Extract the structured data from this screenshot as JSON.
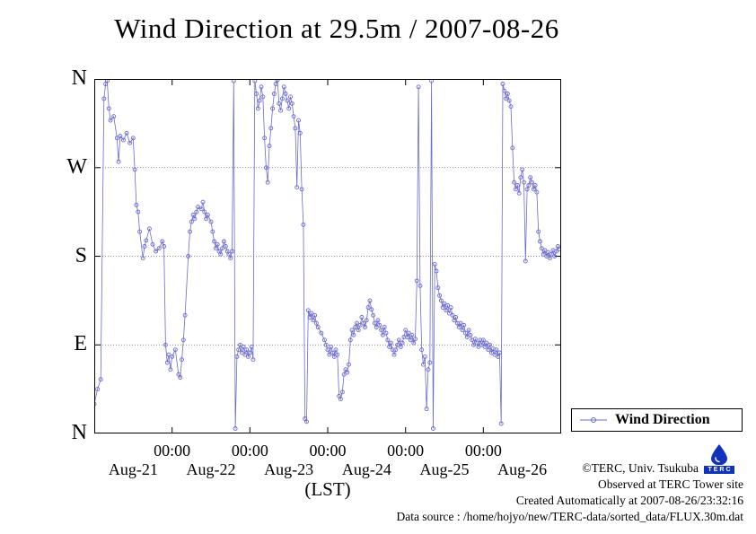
{
  "colors": {
    "series": "#6b6bd0",
    "axis": "#000000",
    "grid": "#666666",
    "logo_blue": "#1133bb"
  },
  "legend": {
    "label": "Wind Direction"
  },
  "footer": {
    "copyright": "©TERC, Univ. Tsukuba",
    "observed": "Observed at TERC Tower site",
    "created": "Created Automatically at 2007-08-26/23:32:16",
    "datasource": "Data source : /home/hojyo/new/TERC-data/sorted_data/FLUX.30m.dat",
    "logo_text": "TERC"
  },
  "chart_data": {
    "type": "line",
    "title": "Wind Direction at 29.5m / 2007-08-26",
    "xlabel": "(LST)",
    "ylabel": "",
    "x_unit": "hours since 2007-08-21 00:00 LST (points every 30 min)",
    "y_unit": "wind direction in degrees (0=N, 90=E, 180=S, 270=W, 360=N)",
    "xlim": [
      0,
      144
    ],
    "ylim": [
      0,
      360
    ],
    "grid": true,
    "legend_position": "outside-right-bottom",
    "y_ticks": [
      {
        "value": 360,
        "label": "N"
      },
      {
        "value": 270,
        "label": "W"
      },
      {
        "value": 180,
        "label": "S"
      },
      {
        "value": 90,
        "label": "E"
      },
      {
        "value": 0,
        "label": "N"
      }
    ],
    "x_ticks": [
      {
        "value": 24,
        "label": "00:00"
      },
      {
        "value": 48,
        "label": "00:00"
      },
      {
        "value": 72,
        "label": "00:00"
      },
      {
        "value": 96,
        "label": "00:00"
      },
      {
        "value": 120,
        "label": "00:00"
      }
    ],
    "x_day_labels": [
      {
        "value": 12,
        "label": "Aug-21"
      },
      {
        "value": 36,
        "label": "Aug-22"
      },
      {
        "value": 60,
        "label": "Aug-23"
      },
      {
        "value": 84,
        "label": "Aug-24"
      },
      {
        "value": 108,
        "label": "Aug-25"
      },
      {
        "value": 132,
        "label": "Aug-26"
      }
    ],
    "series": [
      {
        "name": "Wind Direction",
        "color": "#6b6bd0",
        "marker": "open-circle",
        "points": [
          [
            0,
            30
          ],
          [
            1,
            45
          ],
          [
            2,
            55
          ],
          [
            3,
            340
          ],
          [
            3.5,
            355
          ],
          [
            4,
            358
          ],
          [
            4.5,
            330
          ],
          [
            5,
            318
          ],
          [
            6,
            322
          ],
          [
            7,
            300
          ],
          [
            7.5,
            276
          ],
          [
            8,
            302
          ],
          [
            9,
            298
          ],
          [
            10,
            305
          ],
          [
            11,
            295
          ],
          [
            12,
            300
          ],
          [
            12.5,
            268
          ],
          [
            13,
            232
          ],
          [
            13.5,
            225
          ],
          [
            14,
            205
          ],
          [
            15,
            178
          ],
          [
            15.5,
            190
          ],
          [
            16,
            196
          ],
          [
            17,
            208
          ],
          [
            18,
            192
          ],
          [
            19,
            185
          ],
          [
            20,
            188
          ],
          [
            21,
            195
          ],
          [
            21.5,
            190
          ],
          [
            22,
            90
          ],
          [
            22.5,
            72
          ],
          [
            23,
            80
          ],
          [
            23.5,
            65
          ],
          [
            24,
            78
          ],
          [
            25,
            85
          ],
          [
            26,
            60
          ],
          [
            26.5,
            57
          ],
          [
            27,
            75
          ],
          [
            27.5,
            95
          ],
          [
            28,
            120
          ],
          [
            29,
            180
          ],
          [
            29.5,
            205
          ],
          [
            30,
            215
          ],
          [
            30.5,
            222
          ],
          [
            31,
            218
          ],
          [
            31.5,
            225
          ],
          [
            32,
            230
          ],
          [
            33,
            228
          ],
          [
            33.5,
            235
          ],
          [
            34,
            225
          ],
          [
            34.5,
            218
          ],
          [
            35,
            222
          ],
          [
            36,
            215
          ],
          [
            36.5,
            205
          ],
          [
            37,
            195
          ],
          [
            37.5,
            188
          ],
          [
            38,
            192
          ],
          [
            38.5,
            185
          ],
          [
            39,
            182
          ],
          [
            39.5,
            188
          ],
          [
            40,
            195
          ],
          [
            40.5,
            190
          ],
          [
            41,
            185
          ],
          [
            41.5,
            182
          ],
          [
            42,
            178
          ],
          [
            42.5,
            185
          ],
          [
            43,
            358
          ],
          [
            43.5,
            5
          ],
          [
            44,
            78
          ],
          [
            44.5,
            85
          ],
          [
            45,
            90
          ],
          [
            45.5,
            82
          ],
          [
            46,
            88
          ],
          [
            46.5,
            80
          ],
          [
            47,
            85
          ],
          [
            47.5,
            78
          ],
          [
            48,
            82
          ],
          [
            48.5,
            88
          ],
          [
            49,
            75
          ],
          [
            49.5,
            358
          ],
          [
            50,
            345
          ],
          [
            50.5,
            330
          ],
          [
            51,
            338
          ],
          [
            51.5,
            352
          ],
          [
            52,
            342
          ],
          [
            52.5,
            300
          ],
          [
            53,
            270
          ],
          [
            53.5,
            255
          ],
          [
            54,
            292
          ],
          [
            54.5,
            310
          ],
          [
            55,
            330
          ],
          [
            55.5,
            345
          ],
          [
            56,
            355
          ],
          [
            56.5,
            359
          ],
          [
            57,
            335
          ],
          [
            57.5,
            328
          ],
          [
            58,
            340
          ],
          [
            58.5,
            352
          ],
          [
            59,
            345
          ],
          [
            59.5,
            338
          ],
          [
            60,
            330
          ],
          [
            60.5,
            342
          ],
          [
            61,
            335
          ],
          [
            61.5,
            322
          ],
          [
            62,
            310
          ],
          [
            62.5,
            250
          ],
          [
            63,
            318
          ],
          [
            63.5,
            305
          ],
          [
            64,
            248
          ],
          [
            64.5,
            212
          ],
          [
            65,
            15
          ],
          [
            65.5,
            12
          ],
          [
            66,
            125
          ],
          [
            66.5,
            118
          ],
          [
            67,
            122
          ],
          [
            67.5,
            115
          ],
          [
            68,
            120
          ],
          [
            68.5,
            112
          ],
          [
            69,
            108
          ],
          [
            70,
            102
          ],
          [
            71,
            95
          ],
          [
            71.5,
            90
          ],
          [
            72,
            85
          ],
          [
            72.5,
            80
          ],
          [
            73,
            88
          ],
          [
            73.5,
            82
          ],
          [
            74,
            78
          ],
          [
            74.5,
            85
          ],
          [
            75,
            80
          ],
          [
            75.5,
            38
          ],
          [
            76,
            35
          ],
          [
            76.5,
            42
          ],
          [
            77,
            60
          ],
          [
            77.5,
            65
          ],
          [
            78,
            62
          ],
          [
            78.5,
            70
          ],
          [
            79,
            95
          ],
          [
            79.5,
            105
          ],
          [
            80,
            100
          ],
          [
            80.5,
            108
          ],
          [
            81,
            112
          ],
          [
            81.5,
            105
          ],
          [
            82,
            110
          ],
          [
            82.5,
            118
          ],
          [
            83,
            112
          ],
          [
            83.5,
            108
          ],
          [
            84,
            115
          ],
          [
            84.5,
            128
          ],
          [
            85,
            135
          ],
          [
            85.5,
            126
          ],
          [
            86,
            120
          ],
          [
            86.5,
            112
          ],
          [
            87,
            108
          ],
          [
            87.5,
            115
          ],
          [
            88,
            110
          ],
          [
            88.5,
            105
          ],
          [
            89,
            100
          ],
          [
            89.5,
            108
          ],
          [
            90,
            102
          ],
          [
            90.5,
            95
          ],
          [
            91,
            88
          ],
          [
            91.5,
            92
          ],
          [
            92,
            85
          ],
          [
            92.5,
            80
          ],
          [
            93,
            85
          ],
          [
            93.5,
            90
          ],
          [
            94,
            95
          ],
          [
            94.5,
            88
          ],
          [
            95,
            92
          ],
          [
            95.5,
            98
          ],
          [
            96,
            105
          ],
          [
            96.5,
            98
          ],
          [
            97,
            102
          ],
          [
            97.5,
            95
          ],
          [
            98,
            100
          ],
          [
            98.5,
            92
          ],
          [
            99,
            96
          ],
          [
            99.5,
            155
          ],
          [
            100,
            352
          ],
          [
            100.5,
            150
          ],
          [
            101,
            85
          ],
          [
            101.5,
            70
          ],
          [
            102,
            78
          ],
          [
            102.5,
            25
          ],
          [
            103,
            65
          ],
          [
            103.5,
            72
          ],
          [
            104,
            358
          ],
          [
            104.5,
            5
          ],
          [
            105,
            172
          ],
          [
            105.5,
            165
          ],
          [
            106,
            148
          ],
          [
            106.5,
            140
          ],
          [
            107,
            135
          ],
          [
            107.5,
            128
          ],
          [
            108,
            132
          ],
          [
            108.5,
            125
          ],
          [
            109,
            130
          ],
          [
            109.5,
            122
          ],
          [
            110,
            128
          ],
          [
            110.5,
            120
          ],
          [
            111,
            115
          ],
          [
            111.5,
            118
          ],
          [
            112,
            112
          ],
          [
            112.5,
            108
          ],
          [
            113,
            112
          ],
          [
            113.5,
            105
          ],
          [
            114,
            110
          ],
          [
            114.5,
            102
          ],
          [
            115,
            98
          ],
          [
            115.5,
            105
          ],
          [
            116,
            100
          ],
          [
            116.5,
            95
          ],
          [
            117,
            90
          ],
          [
            117.5,
            96
          ],
          [
            118,
            92
          ],
          [
            118.5,
            88
          ],
          [
            119,
            95
          ],
          [
            119.5,
            90
          ],
          [
            120,
            95
          ],
          [
            120.5,
            88
          ],
          [
            121,
            92
          ],
          [
            121.5,
            85
          ],
          [
            122,
            90
          ],
          [
            122.5,
            82
          ],
          [
            123,
            86
          ],
          [
            123.5,
            80
          ],
          [
            124,
            85
          ],
          [
            124.5,
            78
          ],
          [
            125,
            82
          ],
          [
            125.5,
            10
          ],
          [
            126,
            355
          ],
          [
            126.5,
            348
          ],
          [
            127,
            340
          ],
          [
            127.5,
            345
          ],
          [
            128,
            338
          ],
          [
            128.5,
            332
          ],
          [
            129,
            290
          ],
          [
            129.5,
            255
          ],
          [
            130,
            248
          ],
          [
            130.5,
            252
          ],
          [
            131,
            244
          ],
          [
            131.5,
            260
          ],
          [
            132,
            268
          ],
          [
            132.5,
            255
          ],
          [
            133,
            175
          ],
          [
            133.5,
            248
          ],
          [
            134,
            252
          ],
          [
            134.5,
            260
          ],
          [
            135,
            255
          ],
          [
            135.5,
            248
          ],
          [
            136,
            252
          ],
          [
            136.5,
            245
          ],
          [
            137,
            205
          ],
          [
            137.5,
            195
          ],
          [
            138,
            188
          ],
          [
            138.5,
            182
          ],
          [
            139,
            186
          ],
          [
            139.5,
            180
          ],
          [
            140,
            184
          ],
          [
            140.5,
            178
          ],
          [
            141,
            182
          ],
          [
            141.5,
            186
          ],
          [
            142,
            180
          ],
          [
            142.5,
            185
          ],
          [
            143,
            190
          ],
          [
            143.5,
            187
          ]
        ]
      }
    ]
  }
}
